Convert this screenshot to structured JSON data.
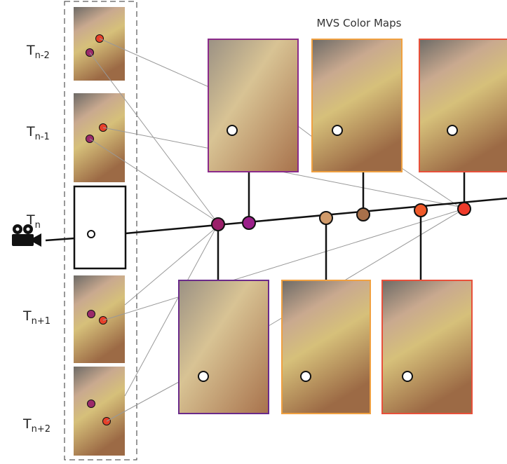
{
  "title": "MVS Color Maps",
  "frames": [
    {
      "base": "T",
      "sub": "n-2"
    },
    {
      "base": "T",
      "sub": "n-1"
    },
    {
      "base": "T",
      "sub": "n"
    },
    {
      "base": "T",
      "sub": "n+1"
    },
    {
      "base": "T",
      "sub": "n+2"
    }
  ]
}
